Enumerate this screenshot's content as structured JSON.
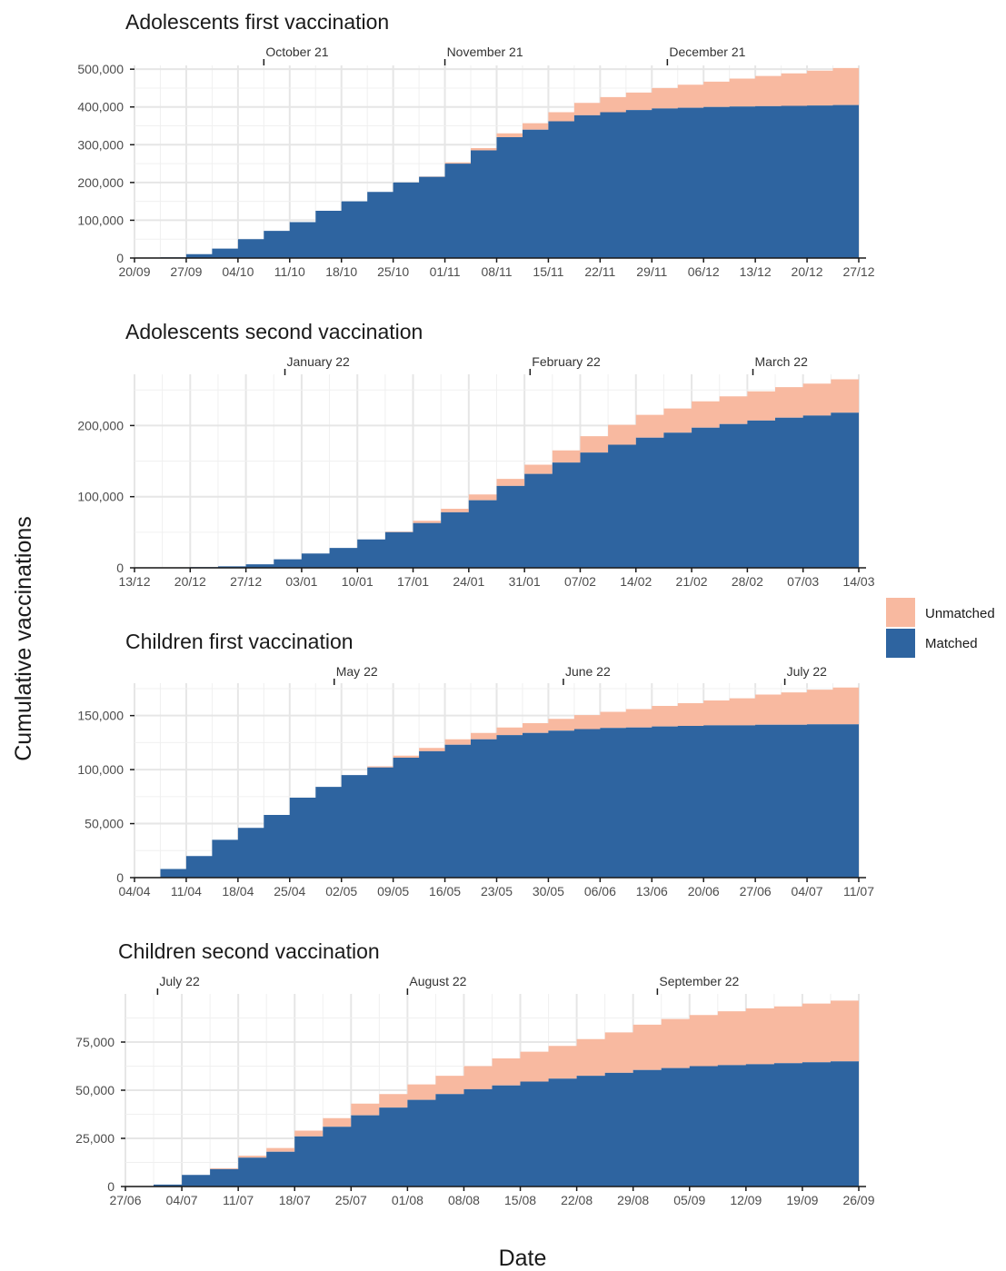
{
  "figure": {
    "ylabel": "Cumulative vaccinations",
    "xlabel": "Date",
    "legend": {
      "position": "right",
      "items": [
        {
          "name": "Unmatched",
          "color": "#F8B9A0"
        },
        {
          "name": "Matched",
          "color": "#2E64A0"
        }
      ]
    }
  },
  "chart_data": [
    {
      "type": "area",
      "title": "Adolescents first vaccination",
      "stacked": true,
      "x_tick_labels": [
        "20/09",
        "27/09",
        "04/10",
        "11/10",
        "18/10",
        "25/10",
        "01/11",
        "08/11",
        "15/11",
        "22/11",
        "29/11",
        "06/12",
        "13/12",
        "20/12",
        "27/12"
      ],
      "month_labels": [
        {
          "label": "October 21",
          "x": 2.5
        },
        {
          "label": "November 21",
          "x": 6
        },
        {
          "label": "December 21",
          "x": 10.3
        }
      ],
      "ylim": [
        0,
        510000
      ],
      "y_ticks": [
        0,
        100000,
        200000,
        300000,
        400000,
        500000
      ],
      "y_tick_labels": [
        "0",
        "100,000",
        "200,000",
        "300,000",
        "400,000",
        "500,000"
      ],
      "grid": true,
      "series": [
        {
          "name": "Matched",
          "x": [
            0,
            0.5,
            1,
            1.5,
            2,
            2.5,
            3,
            3.5,
            4,
            4.5,
            5,
            5.5,
            6,
            6.5,
            7,
            7.5,
            8,
            8.5,
            9,
            9.5,
            10,
            10.5,
            11,
            11.5,
            12,
            12.5,
            13,
            13.5,
            14
          ],
          "values": [
            0,
            2000,
            10000,
            25000,
            50000,
            72000,
            95000,
            125000,
            150000,
            175000,
            200000,
            215000,
            250000,
            285000,
            320000,
            340000,
            362000,
            378000,
            386000,
            392000,
            396000,
            398000,
            400000,
            401000,
            402000,
            403000,
            404000,
            405000,
            406000
          ]
        },
        {
          "name": "Unmatched",
          "x": [
            0,
            0.5,
            1,
            1.5,
            2,
            2.5,
            3,
            3.5,
            4,
            4.5,
            5,
            5.5,
            6,
            6.5,
            7,
            7.5,
            8,
            8.5,
            9,
            9.5,
            10,
            10.5,
            11,
            11.5,
            12,
            12.5,
            13,
            13.5,
            14
          ],
          "values": [
            0,
            0,
            0,
            0,
            0,
            0,
            0,
            0,
            0,
            0,
            0,
            1000,
            3000,
            6000,
            10000,
            17000,
            24000,
            33000,
            40000,
            46000,
            54000,
            61000,
            67000,
            74000,
            80000,
            86000,
            92000,
            98000,
            104000
          ]
        }
      ]
    },
    {
      "type": "area",
      "title": "Adolescents second vaccination",
      "stacked": true,
      "x_tick_labels": [
        "13/12",
        "20/12",
        "27/12",
        "03/01",
        "10/01",
        "17/01",
        "24/01",
        "31/01",
        "07/02",
        "14/02",
        "21/02",
        "28/02",
        "07/03",
        "14/03"
      ],
      "month_labels": [
        {
          "label": "January 22",
          "x": 2.7
        },
        {
          "label": "February 22",
          "x": 7.1
        },
        {
          "label": "March 22",
          "x": 11.1
        }
      ],
      "ylim": [
        0,
        272000
      ],
      "y_ticks": [
        0,
        100000,
        200000
      ],
      "y_tick_labels": [
        "0",
        "100,000",
        "200,000"
      ],
      "grid": true,
      "series": [
        {
          "name": "Matched",
          "x": [
            0,
            0.5,
            1,
            1.5,
            2,
            2.5,
            3,
            3.5,
            4,
            4.5,
            5,
            5.5,
            6,
            6.5,
            7,
            7.5,
            8,
            8.5,
            9,
            9.5,
            10,
            10.5,
            11,
            11.5,
            12,
            12.5,
            13
          ],
          "values": [
            0,
            0,
            1000,
            2000,
            5000,
            12000,
            20000,
            28000,
            40000,
            50000,
            63000,
            78000,
            95000,
            115000,
            132000,
            148000,
            162000,
            173000,
            183000,
            190000,
            197000,
            202000,
            207000,
            211000,
            214000,
            218000,
            221000
          ]
        },
        {
          "name": "Unmatched",
          "x": [
            0,
            0.5,
            1,
            1.5,
            2,
            2.5,
            3,
            3.5,
            4,
            4.5,
            5,
            5.5,
            6,
            6.5,
            7,
            7.5,
            8,
            8.5,
            9,
            9.5,
            10,
            10.5,
            11,
            11.5,
            12,
            12.5,
            13
          ],
          "values": [
            0,
            0,
            0,
            0,
            0,
            0,
            0,
            0,
            0,
            1000,
            3000,
            5000,
            8000,
            10000,
            13000,
            17000,
            23000,
            28000,
            32000,
            34000,
            37000,
            39000,
            41000,
            43000,
            45000,
            47000,
            49000
          ]
        }
      ]
    },
    {
      "type": "area",
      "title": "Children first vaccination",
      "stacked": true,
      "x_tick_labels": [
        "04/04",
        "11/04",
        "18/04",
        "25/04",
        "02/05",
        "09/05",
        "16/05",
        "23/05",
        "30/05",
        "06/06",
        "13/06",
        "20/06",
        "27/06",
        "04/07",
        "11/07"
      ],
      "month_labels": [
        {
          "label": "May 22",
          "x": 3.86
        },
        {
          "label": "June 22",
          "x": 8.29
        },
        {
          "label": "July 22",
          "x": 12.57
        }
      ],
      "ylim": [
        0,
        180000
      ],
      "y_ticks": [
        0,
        50000,
        100000,
        150000
      ],
      "y_tick_labels": [
        "0",
        "50,000",
        "100,000",
        "150,000"
      ],
      "grid": true,
      "series": [
        {
          "name": "Matched",
          "x": [
            0,
            0.5,
            1,
            1.5,
            2,
            2.5,
            3,
            3.5,
            4,
            4.5,
            5,
            5.5,
            6,
            6.5,
            7,
            7.5,
            8,
            8.5,
            9,
            9.5,
            10,
            10.5,
            11,
            11.5,
            12,
            12.5,
            13,
            13.5,
            14
          ],
          "values": [
            0,
            8000,
            20000,
            35000,
            46000,
            58000,
            74000,
            84000,
            95000,
            102000,
            111000,
            117000,
            123000,
            128000,
            132000,
            134000,
            136000,
            137500,
            138500,
            139000,
            140000,
            140500,
            141000,
            141000,
            141500,
            141500,
            142000,
            142000,
            142000
          ]
        },
        {
          "name": "Unmatched",
          "x": [
            0,
            0.5,
            1,
            1.5,
            2,
            2.5,
            3,
            3.5,
            4,
            4.5,
            5,
            5.5,
            6,
            6.5,
            7,
            7.5,
            8,
            8.5,
            9,
            9.5,
            10,
            10.5,
            11,
            11.5,
            12,
            12.5,
            13,
            13.5,
            14
          ],
          "values": [
            0,
            0,
            0,
            0,
            0,
            0,
            0,
            0,
            0,
            1000,
            2000,
            3000,
            5000,
            6000,
            7000,
            9000,
            11000,
            13000,
            15000,
            17000,
            19000,
            21000,
            23000,
            25000,
            28000,
            30000,
            32000,
            34000,
            35000
          ]
        }
      ]
    },
    {
      "type": "area",
      "title": "Children second vaccination",
      "stacked": true,
      "x_tick_labels": [
        "27/06",
        "04/07",
        "11/07",
        "18/07",
        "25/07",
        "01/08",
        "08/08",
        "15/08",
        "22/08",
        "29/08",
        "05/09",
        "12/09",
        "19/09",
        "26/09"
      ],
      "month_labels": [
        {
          "label": "July 22",
          "x": 0.57
        },
        {
          "label": "August 22",
          "x": 5
        },
        {
          "label": "September 22",
          "x": 9.43
        }
      ],
      "ylim": [
        0,
        100000
      ],
      "y_ticks": [
        0,
        25000,
        50000,
        75000
      ],
      "y_tick_labels": [
        "0",
        "25,000",
        "50,000",
        "75,000"
      ],
      "grid": true,
      "series": [
        {
          "name": "Matched",
          "x": [
            0,
            0.5,
            1,
            1.5,
            2,
            2.5,
            3,
            3.5,
            4,
            4.5,
            5,
            5.5,
            6,
            6.5,
            7,
            7.5,
            8,
            8.5,
            9,
            9.5,
            10,
            10.5,
            11,
            11.5,
            12,
            12.5,
            13
          ],
          "values": [
            0,
            1000,
            6000,
            9000,
            15000,
            18000,
            26000,
            31000,
            37000,
            41000,
            45000,
            48000,
            50500,
            52500,
            54500,
            56000,
            57500,
            59000,
            60500,
            61500,
            62500,
            63000,
            63500,
            64000,
            64500,
            65000,
            65500
          ]
        },
        {
          "name": "Unmatched",
          "x": [
            0,
            0.5,
            1,
            1.5,
            2,
            2.5,
            3,
            3.5,
            4,
            4.5,
            5,
            5.5,
            6,
            6.5,
            7,
            7.5,
            8,
            8.5,
            9,
            9.5,
            10,
            10.5,
            11,
            11.5,
            12,
            12.5,
            13
          ],
          "values": [
            0,
            0,
            0,
            500,
            1000,
            2000,
            3000,
            4500,
            6000,
            7000,
            8000,
            9500,
            12000,
            14000,
            15500,
            17000,
            19000,
            21000,
            23500,
            25500,
            26500,
            28000,
            29000,
            29500,
            30500,
            31500,
            32500
          ]
        }
      ]
    }
  ]
}
